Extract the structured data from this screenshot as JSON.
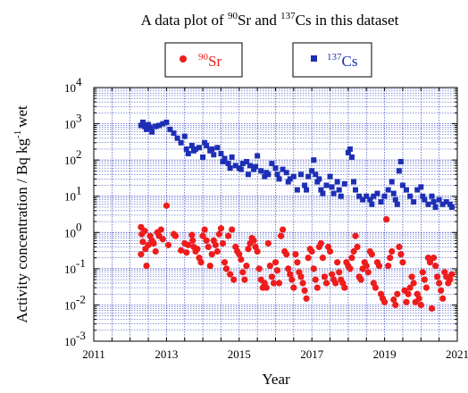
{
  "chart_data": {
    "type": "scatter",
    "title": {
      "prefix": "A data plot of ",
      "iso1_mass": "90",
      "iso1_symbol": "Sr",
      "mid": " and ",
      "iso2_mass": "137",
      "iso2_symbol": "Cs",
      "suffix": " in this dataset"
    },
    "xlabel": "Year",
    "ylabel": {
      "main": "Activity concentration / Bq kg",
      "sup": "-1",
      "tail": "wet"
    },
    "xlim": [
      2011,
      2021
    ],
    "ylim": [
      0.001,
      10000
    ],
    "yscale": "log",
    "grid": true,
    "legend_placement": "top",
    "x_ticks": [
      2011,
      2013,
      2015,
      2017,
      2019,
      2021
    ],
    "x_tick_labels": [
      "2011",
      "2013",
      "2015",
      "2017",
      "2019",
      "2021"
    ],
    "y_ticks": [
      {
        "value": 0.001,
        "base": "10",
        "exp": "-3"
      },
      {
        "value": 0.01,
        "base": "10",
        "exp": "-2"
      },
      {
        "value": 0.1,
        "base": "10",
        "exp": "-1"
      },
      {
        "value": 1,
        "base": "10",
        "exp": "0"
      },
      {
        "value": 10,
        "base": "10",
        "exp": "1"
      },
      {
        "value": 100,
        "base": "10",
        "exp": "2"
      },
      {
        "value": 1000,
        "base": "10",
        "exp": "3"
      },
      {
        "value": 10000,
        "base": "10",
        "exp": "4"
      }
    ],
    "series": [
      {
        "name_mass": "90",
        "name_symbol": "Sr",
        "color": "#ee1c1c",
        "marker": "circle",
        "points": [
          [
            2012.3,
            1.4
          ],
          [
            2012.32,
            0.9
          ],
          [
            2012.35,
            0.55
          ],
          [
            2012.3,
            0.25
          ],
          [
            2012.4,
            1.1
          ],
          [
            2012.42,
            0.35
          ],
          [
            2012.45,
            0.12
          ],
          [
            2012.5,
            0.45
          ],
          [
            2012.55,
            0.8
          ],
          [
            2012.6,
            0.6
          ],
          [
            2012.65,
            0.5
          ],
          [
            2012.7,
            0.3
          ],
          [
            2012.75,
            1.0
          ],
          [
            2012.8,
            0.8
          ],
          [
            2012.85,
            1.2
          ],
          [
            2012.9,
            0.65
          ],
          [
            2013.0,
            5.5
          ],
          [
            2013.05,
            0.45
          ],
          [
            2013.2,
            0.9
          ],
          [
            2013.25,
            0.8
          ],
          [
            2013.4,
            0.32
          ],
          [
            2013.5,
            0.5
          ],
          [
            2013.55,
            0.28
          ],
          [
            2013.6,
            0.45
          ],
          [
            2013.7,
            0.85
          ],
          [
            2013.72,
            0.6
          ],
          [
            2013.75,
            0.4
          ],
          [
            2013.8,
            0.3
          ],
          [
            2013.85,
            0.35
          ],
          [
            2013.9,
            0.2
          ],
          [
            2013.95,
            0.15
          ],
          [
            2014.0,
            0.8
          ],
          [
            2014.05,
            1.2
          ],
          [
            2014.1,
            0.6
          ],
          [
            2014.15,
            0.4
          ],
          [
            2014.2,
            0.12
          ],
          [
            2014.25,
            0.25
          ],
          [
            2014.3,
            0.6
          ],
          [
            2014.35,
            0.45
          ],
          [
            2014.4,
            0.3
          ],
          [
            2014.45,
            0.9
          ],
          [
            2014.5,
            1.3
          ],
          [
            2014.55,
            0.5
          ],
          [
            2014.6,
            0.15
          ],
          [
            2014.65,
            0.1
          ],
          [
            2014.7,
            0.8
          ],
          [
            2014.75,
            0.07
          ],
          [
            2014.8,
            1.2
          ],
          [
            2014.85,
            0.05
          ],
          [
            2014.9,
            0.4
          ],
          [
            2014.95,
            0.3
          ],
          [
            2015.0,
            0.25
          ],
          [
            2015.05,
            0.18
          ],
          [
            2015.1,
            0.08
          ],
          [
            2015.15,
            0.05
          ],
          [
            2015.2,
            0.12
          ],
          [
            2015.25,
            0.35
          ],
          [
            2015.3,
            0.5
          ],
          [
            2015.35,
            0.7
          ],
          [
            2015.4,
            0.6
          ],
          [
            2015.45,
            0.4
          ],
          [
            2015.5,
            0.3
          ],
          [
            2015.55,
            0.1
          ],
          [
            2015.6,
            0.05
          ],
          [
            2015.65,
            0.03
          ],
          [
            2015.7,
            0.04
          ],
          [
            2015.75,
            0.03
          ],
          [
            2015.8,
            0.5
          ],
          [
            2015.85,
            0.12
          ],
          [
            2015.9,
            0.06
          ],
          [
            2015.95,
            0.04
          ],
          [
            2016.0,
            0.15
          ],
          [
            2016.05,
            0.09
          ],
          [
            2016.1,
            0.04
          ],
          [
            2016.15,
            0.8
          ],
          [
            2016.2,
            1.2
          ],
          [
            2016.25,
            0.3
          ],
          [
            2016.3,
            0.25
          ],
          [
            2016.35,
            0.1
          ],
          [
            2016.4,
            0.07
          ],
          [
            2016.45,
            0.05
          ],
          [
            2016.5,
            0.03
          ],
          [
            2016.55,
            0.25
          ],
          [
            2016.6,
            0.15
          ],
          [
            2016.65,
            0.08
          ],
          [
            2016.7,
            0.06
          ],
          [
            2016.75,
            0.04
          ],
          [
            2016.8,
            0.025
          ],
          [
            2016.85,
            0.015
          ],
          [
            2016.9,
            0.2
          ],
          [
            2016.95,
            0.35
          ],
          [
            2017.0,
            0.3
          ],
          [
            2017.05,
            0.1
          ],
          [
            2017.1,
            0.05
          ],
          [
            2017.15,
            0.03
          ],
          [
            2017.2,
            0.4
          ],
          [
            2017.25,
            0.5
          ],
          [
            2017.3,
            0.2
          ],
          [
            2017.35,
            0.06
          ],
          [
            2017.4,
            0.04
          ],
          [
            2017.45,
            0.4
          ],
          [
            2017.5,
            0.3
          ],
          [
            2017.55,
            0.07
          ],
          [
            2017.6,
            0.05
          ],
          [
            2017.65,
            0.04
          ],
          [
            2017.7,
            0.15
          ],
          [
            2017.75,
            0.08
          ],
          [
            2017.8,
            0.05
          ],
          [
            2017.85,
            0.04
          ],
          [
            2017.9,
            0.03
          ],
          [
            2017.95,
            0.15
          ],
          [
            2018.0,
            0.12
          ],
          [
            2018.05,
            0.1
          ],
          [
            2018.1,
            0.2
          ],
          [
            2018.15,
            0.3
          ],
          [
            2018.2,
            0.8
          ],
          [
            2018.25,
            0.4
          ],
          [
            2018.3,
            0.06
          ],
          [
            2018.35,
            0.05
          ],
          [
            2018.4,
            0.1
          ],
          [
            2018.45,
            0.15
          ],
          [
            2018.5,
            0.12
          ],
          [
            2018.55,
            0.08
          ],
          [
            2018.6,
            0.3
          ],
          [
            2018.65,
            0.25
          ],
          [
            2018.7,
            0.04
          ],
          [
            2018.75,
            0.03
          ],
          [
            2018.8,
            0.15
          ],
          [
            2018.85,
            0.12
          ],
          [
            2018.9,
            0.02
          ],
          [
            2018.95,
            0.015
          ],
          [
            2019.0,
            0.012
          ],
          [
            2019.05,
            2.3
          ],
          [
            2019.1,
            0.12
          ],
          [
            2019.15,
            0.2
          ],
          [
            2019.2,
            0.3
          ],
          [
            2019.25,
            0.014
          ],
          [
            2019.3,
            0.01
          ],
          [
            2019.35,
            0.02
          ],
          [
            2019.4,
            0.4
          ],
          [
            2019.45,
            0.25
          ],
          [
            2019.5,
            0.15
          ],
          [
            2019.55,
            0.025
          ],
          [
            2019.6,
            0.012
          ],
          [
            2019.65,
            0.02
          ],
          [
            2019.7,
            0.03
          ],
          [
            2019.75,
            0.06
          ],
          [
            2019.8,
            0.04
          ],
          [
            2019.85,
            0.012
          ],
          [
            2019.9,
            0.02
          ],
          [
            2019.95,
            0.015
          ],
          [
            2020.0,
            0.01
          ],
          [
            2020.05,
            0.08
          ],
          [
            2020.1,
            0.05
          ],
          [
            2020.15,
            0.03
          ],
          [
            2020.2,
            0.2
          ],
          [
            2020.25,
            0.15
          ],
          [
            2020.3,
            0.008
          ],
          [
            2020.35,
            0.2
          ],
          [
            2020.4,
            0.12
          ],
          [
            2020.45,
            0.06
          ],
          [
            2020.5,
            0.04
          ],
          [
            2020.55,
            0.025
          ],
          [
            2020.6,
            0.015
          ],
          [
            2020.65,
            0.08
          ],
          [
            2020.7,
            0.06
          ],
          [
            2020.75,
            0.04
          ],
          [
            2020.8,
            0.05
          ],
          [
            2020.85,
            0.07
          ]
        ]
      },
      {
        "name_mass": "137",
        "name_symbol": "Cs",
        "color": "#1c2fb4",
        "marker": "square",
        "points": [
          [
            2012.3,
            900
          ],
          [
            2012.35,
            1100
          ],
          [
            2012.4,
            850
          ],
          [
            2012.45,
            700
          ],
          [
            2012.5,
            950
          ],
          [
            2012.55,
            800
          ],
          [
            2012.6,
            600
          ],
          [
            2012.7,
            850
          ],
          [
            2012.8,
            900
          ],
          [
            2012.9,
            1000
          ],
          [
            2013.0,
            1100
          ],
          [
            2013.1,
            700
          ],
          [
            2013.2,
            550
          ],
          [
            2013.3,
            400
          ],
          [
            2013.4,
            300
          ],
          [
            2013.5,
            450
          ],
          [
            2013.55,
            200
          ],
          [
            2013.6,
            150
          ],
          [
            2013.7,
            250
          ],
          [
            2013.75,
            180
          ],
          [
            2013.8,
            200
          ],
          [
            2013.9,
            220
          ],
          [
            2014.0,
            120
          ],
          [
            2014.05,
            300
          ],
          [
            2014.1,
            250
          ],
          [
            2014.2,
            180
          ],
          [
            2014.25,
            200
          ],
          [
            2014.3,
            140
          ],
          [
            2014.4,
            220
          ],
          [
            2014.5,
            150
          ],
          [
            2014.55,
            90
          ],
          [
            2014.6,
            110
          ],
          [
            2014.7,
            80
          ],
          [
            2014.75,
            60
          ],
          [
            2014.8,
            120
          ],
          [
            2014.9,
            70
          ],
          [
            2015.0,
            60
          ],
          [
            2015.05,
            55
          ],
          [
            2015.1,
            80
          ],
          [
            2015.2,
            90
          ],
          [
            2015.25,
            40
          ],
          [
            2015.3,
            70
          ],
          [
            2015.4,
            55
          ],
          [
            2015.45,
            65
          ],
          [
            2015.5,
            130
          ],
          [
            2015.6,
            50
          ],
          [
            2015.7,
            35
          ],
          [
            2015.75,
            45
          ],
          [
            2015.8,
            40
          ],
          [
            2015.9,
            80
          ],
          [
            2016.0,
            60
          ],
          [
            2016.05,
            40
          ],
          [
            2016.1,
            30
          ],
          [
            2016.2,
            55
          ],
          [
            2016.3,
            45
          ],
          [
            2016.35,
            25
          ],
          [
            2016.4,
            30
          ],
          [
            2016.5,
            35
          ],
          [
            2016.6,
            15
          ],
          [
            2016.7,
            40
          ],
          [
            2016.8,
            20
          ],
          [
            2016.85,
            15
          ],
          [
            2016.9,
            35
          ],
          [
            2017.0,
            50
          ],
          [
            2017.05,
            100
          ],
          [
            2017.1,
            40
          ],
          [
            2017.15,
            25
          ],
          [
            2017.2,
            30
          ],
          [
            2017.25,
            15
          ],
          [
            2017.3,
            12
          ],
          [
            2017.4,
            20
          ],
          [
            2017.5,
            35
          ],
          [
            2017.55,
            18
          ],
          [
            2017.6,
            12
          ],
          [
            2017.7,
            25
          ],
          [
            2017.75,
            15
          ],
          [
            2017.8,
            10
          ],
          [
            2017.9,
            22
          ],
          [
            2018.0,
            160
          ],
          [
            2018.05,
            200
          ],
          [
            2018.1,
            120
          ],
          [
            2018.15,
            25
          ],
          [
            2018.2,
            15
          ],
          [
            2018.3,
            10
          ],
          [
            2018.4,
            8
          ],
          [
            2018.5,
            10
          ],
          [
            2018.6,
            8
          ],
          [
            2018.65,
            6
          ],
          [
            2018.7,
            10
          ],
          [
            2018.8,
            12
          ],
          [
            2018.9,
            7
          ],
          [
            2019.0,
            10
          ],
          [
            2019.1,
            15
          ],
          [
            2019.2,
            25
          ],
          [
            2019.25,
            12
          ],
          [
            2019.3,
            8
          ],
          [
            2019.35,
            6
          ],
          [
            2019.4,
            50
          ],
          [
            2019.45,
            90
          ],
          [
            2019.5,
            20
          ],
          [
            2019.6,
            15
          ],
          [
            2019.7,
            10
          ],
          [
            2019.8,
            7
          ],
          [
            2019.9,
            15
          ],
          [
            2020.0,
            18
          ],
          [
            2020.05,
            10
          ],
          [
            2020.1,
            8
          ],
          [
            2020.2,
            6
          ],
          [
            2020.3,
            10
          ],
          [
            2020.35,
            7
          ],
          [
            2020.4,
            5
          ],
          [
            2020.5,
            8
          ],
          [
            2020.6,
            6
          ],
          [
            2020.7,
            7
          ],
          [
            2020.8,
            6
          ],
          [
            2020.85,
            5
          ]
        ]
      }
    ]
  }
}
